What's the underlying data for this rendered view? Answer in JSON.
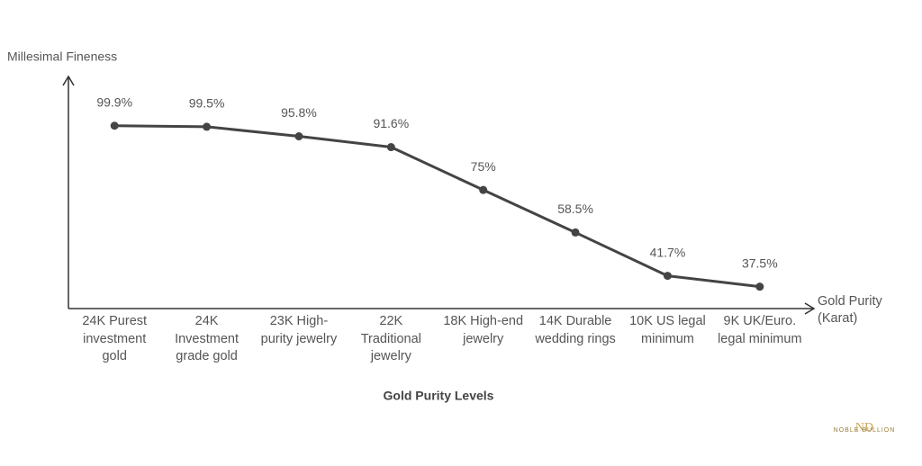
{
  "chart_data": {
    "type": "line",
    "title": "Gold Purity Levels",
    "y_label": "Millesimal Fineness",
    "x_label": "Gold Purity (Karat)",
    "categories": [
      "24K Purest investment gold",
      "24K Investment grade gold",
      "23K High-purity jewelry",
      "22K Traditional jewelry",
      "18K High-end jewelry",
      "14K Durable wedding rings",
      "10K US legal minimum",
      "9K UK/Euro. legal minimum"
    ],
    "values": [
      99.9,
      99.5,
      95.8,
      91.6,
      75,
      58.5,
      41.7,
      37.5
    ],
    "value_labels": [
      "99.9%",
      "99.5%",
      "95.8%",
      "91.6%",
      "75%",
      "58.5%",
      "41.7%",
      "37.5%"
    ],
    "color": "#444444",
    "ylim": [
      29,
      119
    ],
    "grid": false
  },
  "logo": {
    "monogram": "ND",
    "name": "NOBLE BULLION"
  }
}
